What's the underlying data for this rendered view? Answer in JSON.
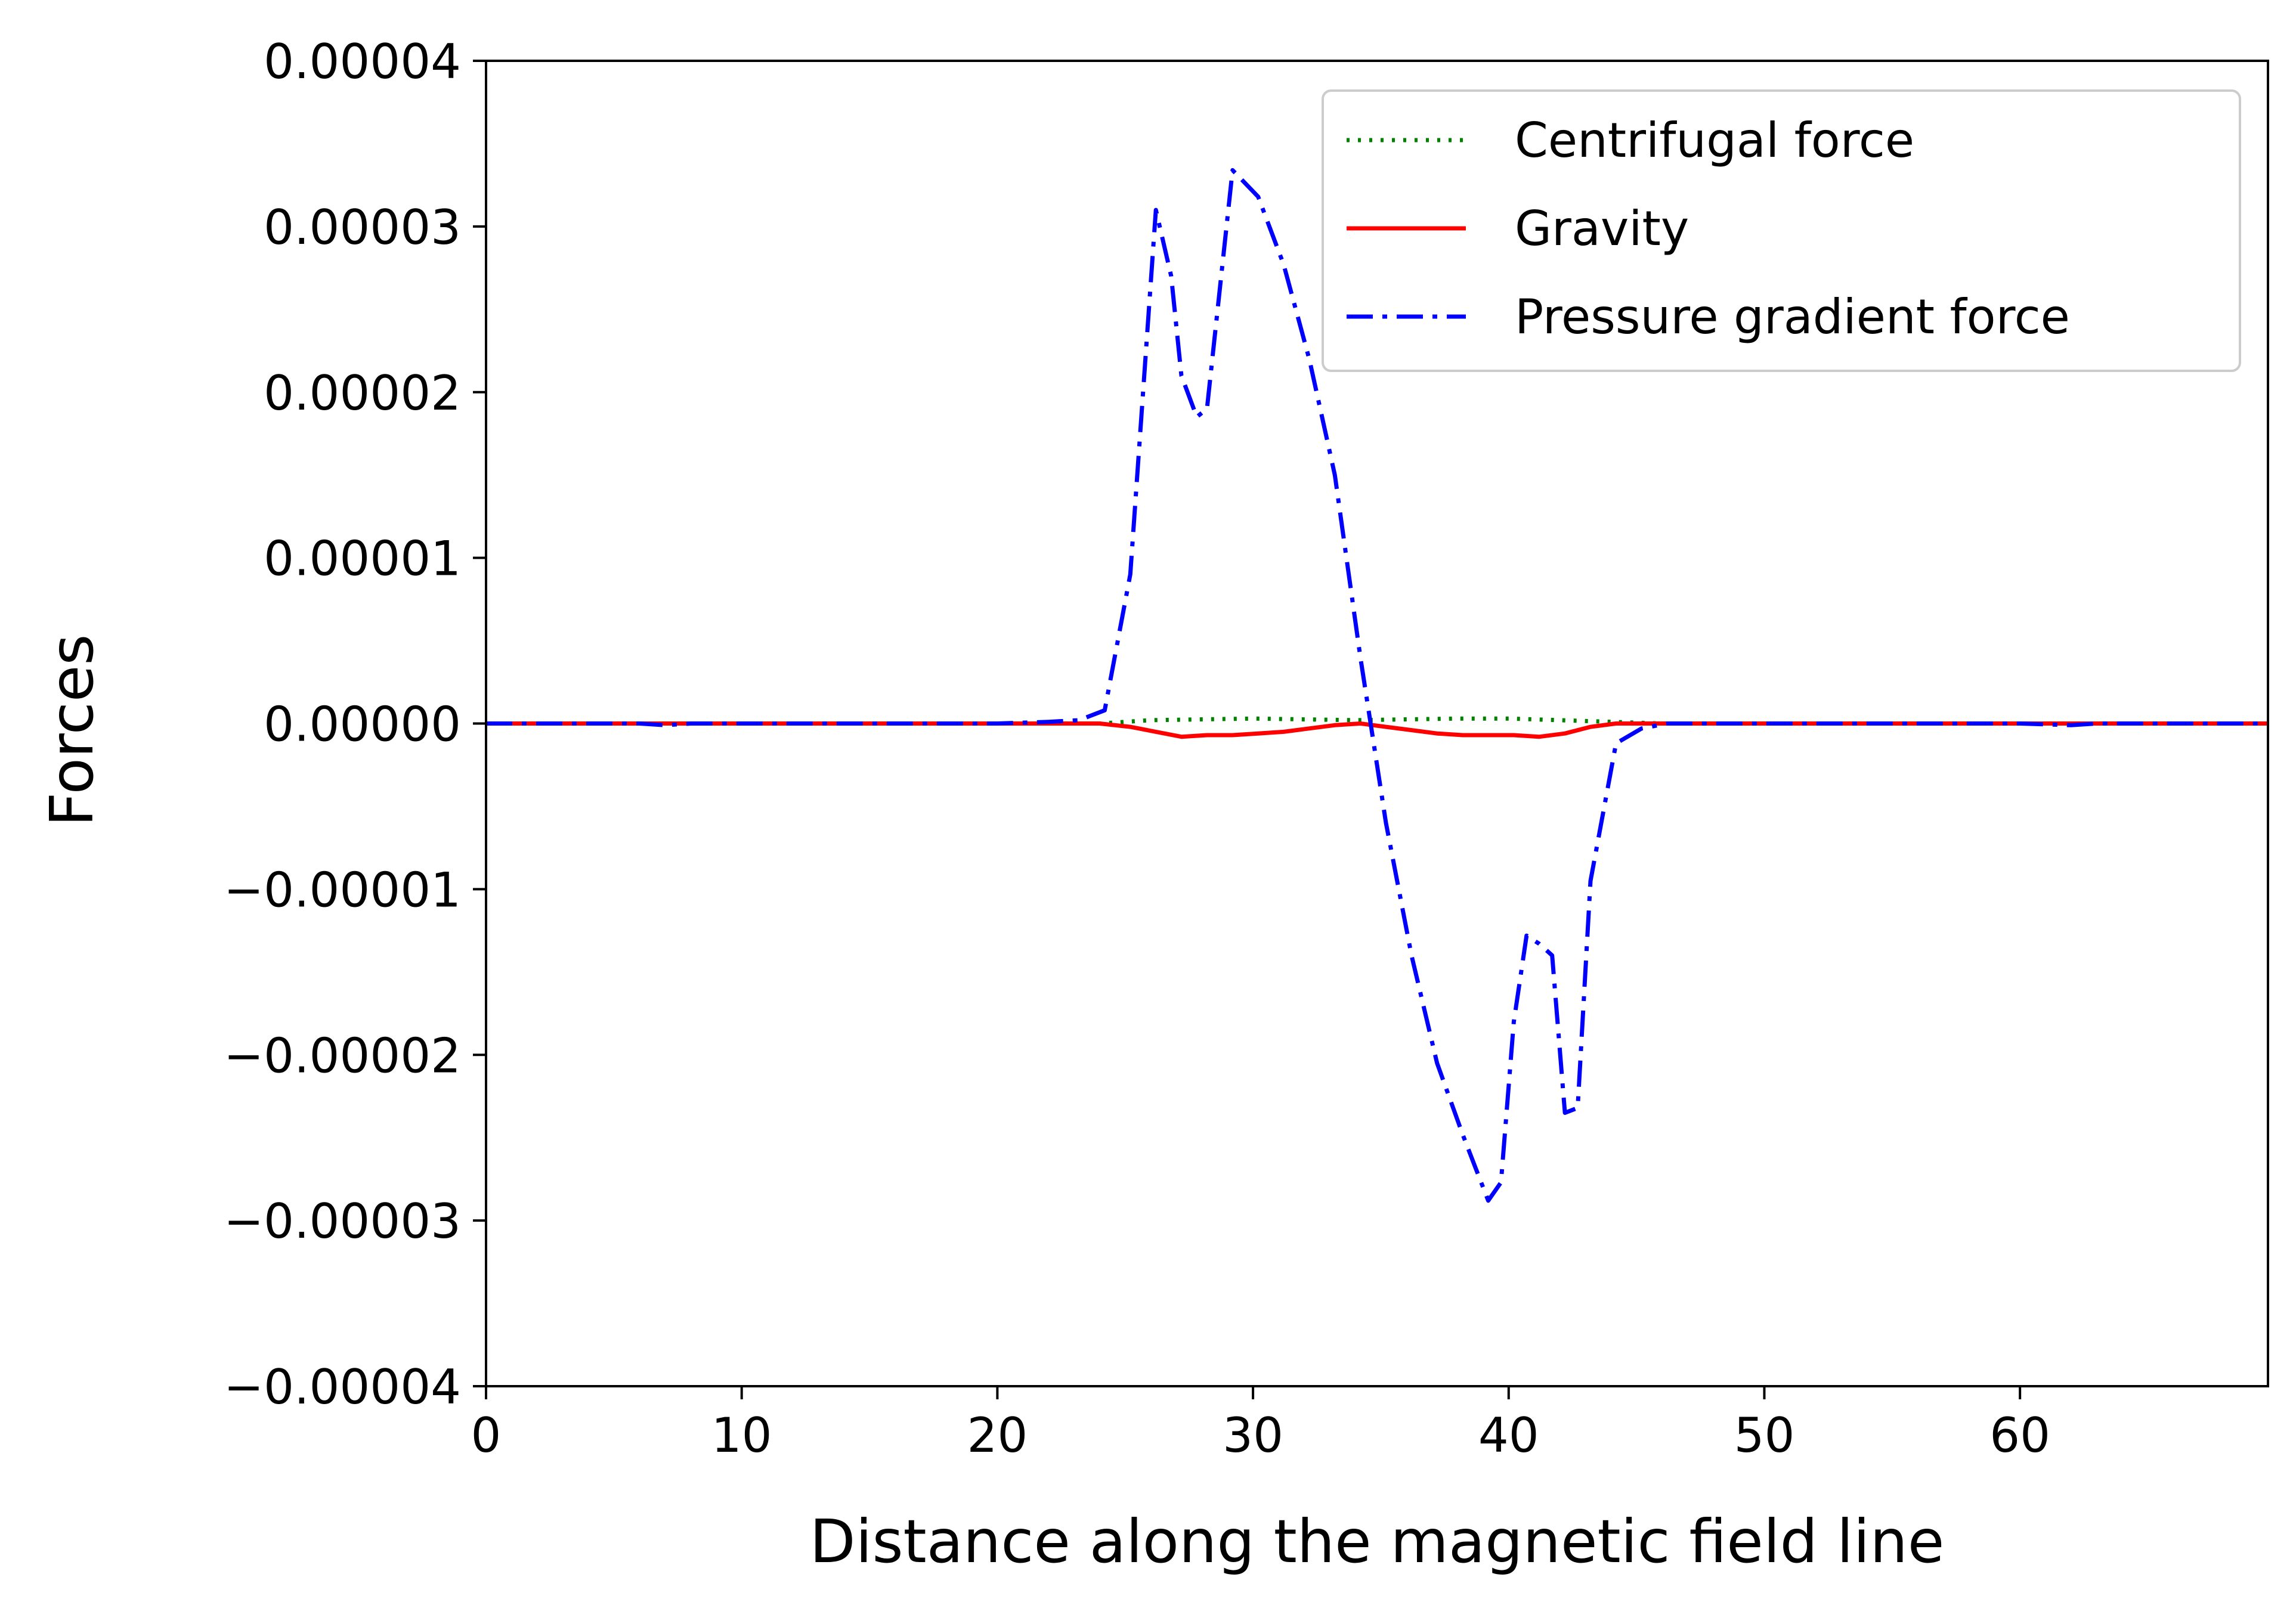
{
  "chart_data": {
    "type": "line",
    "title": "",
    "xlabel": "Distance along the magnetic field line",
    "ylabel": "Forces",
    "xlim": [
      0,
      69.7
    ],
    "ylim": [
      -4e-05,
      4e-05
    ],
    "x_ticks": [
      0,
      10,
      20,
      30,
      40,
      50,
      60
    ],
    "x_tick_labels": [
      "0",
      "10",
      "20",
      "30",
      "40",
      "50",
      "60"
    ],
    "y_ticks": [
      4e-05,
      3e-05,
      2e-05,
      1e-05,
      0,
      -1e-05,
      -2e-05,
      -3e-05,
      -4e-05
    ],
    "y_tick_labels": [
      "0.00004",
      "0.00003",
      "0.00002",
      "0.00001",
      "0.00000",
      "−0.00001",
      "−0.00002",
      "−0.00003",
      "−0.00004"
    ],
    "grid": false,
    "legend_position": "top-right",
    "series": [
      {
        "name": "Centrifugal force",
        "color": "#008000",
        "style": "dotted",
        "points": [
          [
            0,
            0
          ],
          [
            20,
            0
          ],
          [
            24,
            0
          ],
          [
            26,
            2e-07
          ],
          [
            30,
            3e-07
          ],
          [
            34,
            2e-07
          ],
          [
            38,
            3e-07
          ],
          [
            40,
            3e-07
          ],
          [
            42,
            2e-07
          ],
          [
            44,
            1e-07
          ],
          [
            46,
            0
          ],
          [
            69.7,
            0
          ]
        ]
      },
      {
        "name": "Gravity",
        "color": "#ff0000",
        "style": "solid",
        "points": [
          [
            0,
            0
          ],
          [
            24,
            0
          ],
          [
            25.2,
            -2e-07
          ],
          [
            26.2,
            -5e-07
          ],
          [
            27.2,
            -8e-07
          ],
          [
            28.2,
            -7e-07
          ],
          [
            29.2,
            -7e-07
          ],
          [
            30.2,
            -6e-07
          ],
          [
            31.2,
            -5e-07
          ],
          [
            32.2,
            -3e-07
          ],
          [
            33.2,
            -1e-07
          ],
          [
            34.2,
            0
          ],
          [
            35.2,
            -2e-07
          ],
          [
            36.2,
            -4e-07
          ],
          [
            37.2,
            -6e-07
          ],
          [
            38.2,
            -7e-07
          ],
          [
            39.2,
            -7e-07
          ],
          [
            40.2,
            -7e-07
          ],
          [
            41.2,
            -8e-07
          ],
          [
            42.2,
            -6e-07
          ],
          [
            43.2,
            -2e-07
          ],
          [
            44.2,
            0
          ],
          [
            69.7,
            0
          ]
        ]
      },
      {
        "name": "Pressure gradient force",
        "color": "#0000ff",
        "style": "dashdot",
        "points": [
          [
            0,
            0
          ],
          [
            6,
            0
          ],
          [
            7,
            -1e-07
          ],
          [
            8,
            0
          ],
          [
            20,
            0
          ],
          [
            22,
            1e-07
          ],
          [
            23.2,
            2e-07
          ],
          [
            24.2,
            8e-07
          ],
          [
            25.2,
            9e-06
          ],
          [
            26.2,
            3.1e-05
          ],
          [
            26.8,
            2.7e-05
          ],
          [
            27.2,
            2.1e-05
          ],
          [
            27.8,
            1.85e-05
          ],
          [
            28.2,
            1.9e-05
          ],
          [
            29.2,
            3.34e-05
          ],
          [
            30.2,
            3.18e-05
          ],
          [
            31.2,
            2.77e-05
          ],
          [
            32.2,
            2.2e-05
          ],
          [
            33.2,
            1.5e-05
          ],
          [
            34.2,
            4e-06
          ],
          [
            34.7,
            -1e-06
          ],
          [
            35.2,
            -6e-06
          ],
          [
            36.2,
            -1.4e-05
          ],
          [
            37.2,
            -2.05e-05
          ],
          [
            38.2,
            -2.48e-05
          ],
          [
            38.7,
            -2.68e-05
          ],
          [
            39.2,
            -2.88e-05
          ],
          [
            39.7,
            -2.77e-05
          ],
          [
            40.2,
            -1.8e-05
          ],
          [
            40.7,
            -1.28e-05
          ],
          [
            41.2,
            -1.33e-05
          ],
          [
            41.7,
            -1.4e-05
          ],
          [
            42.2,
            -2.35e-05
          ],
          [
            42.7,
            -2.32e-05
          ],
          [
            43.2,
            -9.5e-06
          ],
          [
            44.2,
            -1.2e-06
          ],
          [
            45.2,
            -3e-07
          ],
          [
            46.2,
            0
          ],
          [
            50,
            0
          ],
          [
            60,
            0
          ],
          [
            62,
            -1e-07
          ],
          [
            63,
            0
          ],
          [
            69.7,
            0
          ]
        ]
      }
    ]
  }
}
